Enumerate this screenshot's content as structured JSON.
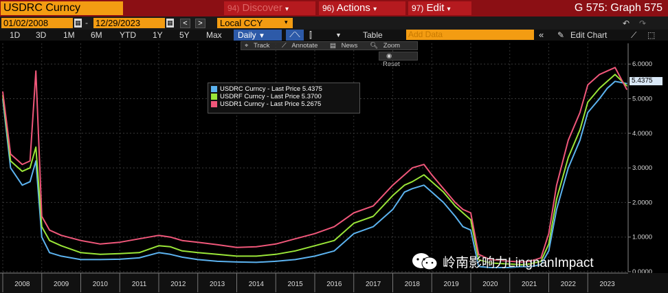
{
  "header": {
    "ticker": "USDRC Curncy",
    "menus": [
      {
        "num": "94)",
        "label": "Discover",
        "arrow": "▾"
      },
      {
        "num": "96)",
        "label": "Actions",
        "arrow": "▾"
      },
      {
        "num": "97)",
        "label": "Edit",
        "arrow": "▾"
      }
    ],
    "screen_title": "G 575: Graph 575"
  },
  "controls": {
    "start_date": "01/02/2008",
    "end_date": "12/29/2023",
    "prev": "<",
    "next": ">",
    "currency": "Local CCY",
    "periods": [
      "1D",
      "3D",
      "1M",
      "6M",
      "YTD",
      "1Y",
      "5Y",
      "Max"
    ],
    "frequency": "Daily",
    "table_label": "Table",
    "add_data_placeholder": "Add Data",
    "edit_chart_label": "Edit Chart"
  },
  "tools": {
    "track": "Track",
    "annotate": "Annotate",
    "news": "News",
    "zoom": "Zoom",
    "reset": "Reset"
  },
  "last_price_tag": "5.4375",
  "watermark": "岭南影响力LingnanImpact",
  "chart_data": {
    "type": "line",
    "x_label_years": [
      "2008",
      "2009",
      "2010",
      "2011",
      "2012",
      "2013",
      "2014",
      "2015",
      "2016",
      "2017",
      "2018",
      "2019",
      "2020",
      "2021",
      "2022",
      "2023"
    ],
    "y_ticks": [
      "6.0000",
      "5.0000",
      "4.0000",
      "3.0000",
      "2.0000",
      "1.0000",
      "0.0000"
    ],
    "ylim": [
      0,
      6.6
    ],
    "xlim": [
      2008.0,
      2024.0
    ],
    "series": [
      {
        "name": "USDRC Curncy - Last Price 5.4375",
        "color": "#5cb3f0",
        "x": [
          2008.0,
          2008.2,
          2008.5,
          2008.7,
          2008.85,
          2009.0,
          2009.2,
          2009.5,
          2010.0,
          2010.5,
          2011.0,
          2011.5,
          2012.0,
          2012.3,
          2012.6,
          2013.0,
          2013.5,
          2014.0,
          2014.5,
          2015.0,
          2015.5,
          2016.0,
          2016.5,
          2017.0,
          2017.5,
          2018.0,
          2018.3,
          2018.5,
          2018.8,
          2019.0,
          2019.3,
          2019.6,
          2019.8,
          2020.0,
          2020.2,
          2020.5,
          2021.0,
          2021.3,
          2021.5,
          2021.8,
          2022.0,
          2022.2,
          2022.5,
          2022.8,
          2023.0,
          2023.3,
          2023.5,
          2023.7,
          2024.0
        ],
        "y": [
          5.0,
          3.0,
          2.5,
          2.6,
          3.2,
          1.0,
          0.55,
          0.45,
          0.35,
          0.35,
          0.36,
          0.4,
          0.55,
          0.5,
          0.42,
          0.35,
          0.3,
          0.28,
          0.27,
          0.3,
          0.35,
          0.45,
          0.6,
          1.1,
          1.3,
          1.8,
          2.3,
          2.4,
          2.5,
          2.3,
          2.0,
          1.6,
          1.3,
          1.2,
          0.15,
          0.12,
          0.12,
          0.15,
          0.14,
          0.2,
          0.6,
          1.8,
          3.0,
          3.8,
          4.6,
          5.0,
          5.3,
          5.5,
          5.4375
        ]
      },
      {
        "name": "USDRF Curncy - Last Price 5.3700",
        "color": "#9ae638",
        "x": [
          2008.0,
          2008.2,
          2008.5,
          2008.7,
          2008.85,
          2009.0,
          2009.2,
          2009.5,
          2010.0,
          2010.5,
          2011.0,
          2011.5,
          2012.0,
          2012.3,
          2012.6,
          2013.0,
          2013.5,
          2014.0,
          2014.5,
          2015.0,
          2015.5,
          2016.0,
          2016.5,
          2017.0,
          2017.5,
          2018.0,
          2018.3,
          2018.5,
          2018.8,
          2019.0,
          2019.3,
          2019.6,
          2019.8,
          2020.0,
          2020.2,
          2020.5,
          2021.0,
          2021.3,
          2021.5,
          2021.8,
          2022.0,
          2022.2,
          2022.5,
          2022.8,
          2023.0,
          2023.3,
          2023.5,
          2023.7,
          2024.0
        ],
        "y": [
          5.1,
          3.2,
          2.9,
          3.0,
          3.6,
          1.3,
          0.9,
          0.75,
          0.55,
          0.5,
          0.52,
          0.55,
          0.75,
          0.72,
          0.6,
          0.55,
          0.5,
          0.45,
          0.45,
          0.5,
          0.6,
          0.75,
          0.9,
          1.4,
          1.6,
          2.2,
          2.5,
          2.6,
          2.8,
          2.6,
          2.3,
          1.9,
          1.7,
          1.5,
          0.35,
          0.25,
          0.22,
          0.2,
          0.22,
          0.3,
          0.8,
          2.1,
          3.3,
          4.1,
          4.9,
          5.3,
          5.5,
          5.7,
          5.37
        ]
      },
      {
        "name": "USDR1 Curncy - Last Price 5.2675",
        "color": "#f0577a",
        "x": [
          2008.0,
          2008.2,
          2008.5,
          2008.7,
          2008.85,
          2009.0,
          2009.2,
          2009.5,
          2010.0,
          2010.5,
          2011.0,
          2011.5,
          2012.0,
          2012.3,
          2012.6,
          2013.0,
          2013.5,
          2014.0,
          2014.5,
          2015.0,
          2015.5,
          2016.0,
          2016.5,
          2017.0,
          2017.5,
          2018.0,
          2018.3,
          2018.5,
          2018.8,
          2019.0,
          2019.3,
          2019.6,
          2019.8,
          2020.0,
          2020.2,
          2020.5,
          2021.0,
          2021.3,
          2021.5,
          2021.8,
          2022.0,
          2022.2,
          2022.5,
          2022.8,
          2023.0,
          2023.3,
          2023.5,
          2023.7,
          2024.0
        ],
        "y": [
          5.2,
          3.4,
          3.1,
          3.2,
          5.8,
          1.6,
          1.2,
          1.05,
          0.9,
          0.8,
          0.85,
          0.95,
          1.05,
          1.0,
          0.9,
          0.85,
          0.78,
          0.7,
          0.72,
          0.8,
          0.95,
          1.1,
          1.3,
          1.7,
          1.9,
          2.5,
          2.8,
          3.0,
          3.1,
          2.8,
          2.4,
          2.0,
          1.8,
          1.7,
          0.5,
          0.35,
          0.3,
          0.28,
          0.3,
          0.4,
          1.1,
          2.5,
          3.8,
          4.6,
          5.4,
          5.7,
          5.8,
          5.9,
          5.2675
        ]
      }
    ]
  }
}
